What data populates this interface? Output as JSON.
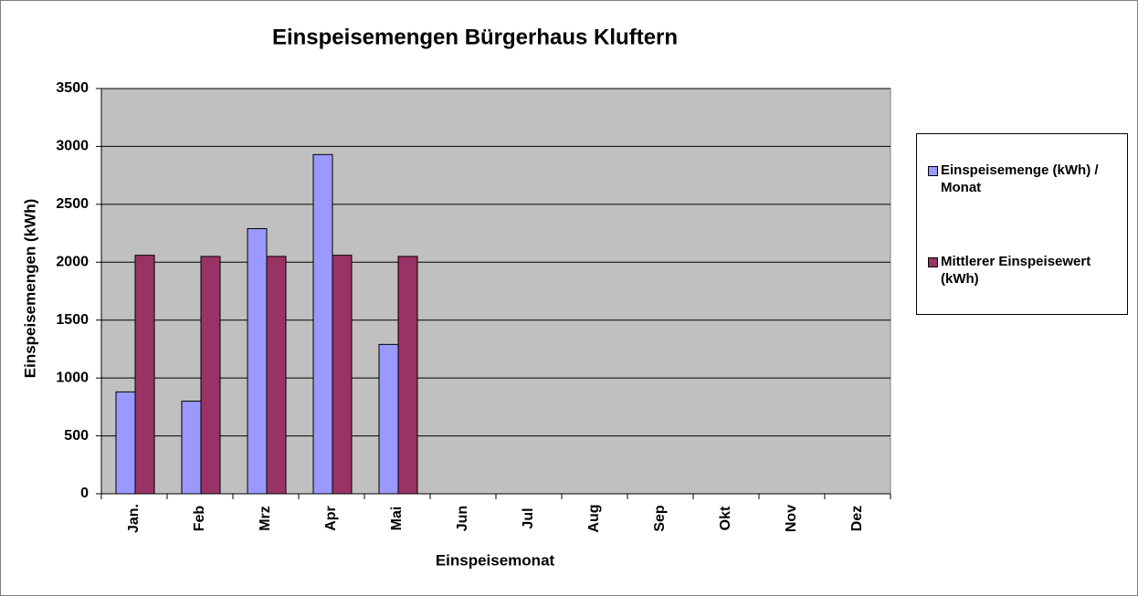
{
  "chart_data": {
    "type": "bar",
    "title": "Einspeisemengen Bürgerhaus Kluftern",
    "x_label": "Einspeisemonat",
    "y_label": "Einspeisemengen (kWh)",
    "categories": [
      "Jan.",
      "Feb",
      "Mrz",
      "Apr",
      "Mai",
      "Jun",
      "Jul",
      "Aug",
      "Sep",
      "Okt",
      "Nov",
      "Dez"
    ],
    "series": [
      {
        "name": "Einspeisemenge (kWh) / Monat",
        "color": "#9999ff",
        "values": [
          880,
          800,
          2290,
          2930,
          1290,
          null,
          null,
          null,
          null,
          null,
          null,
          null
        ]
      },
      {
        "name": "Mittlerer Einspeisewert (kWh)",
        "color": "#993366",
        "values": [
          2060,
          2050,
          2050,
          2060,
          2050,
          null,
          null,
          null,
          null,
          null,
          null,
          null
        ]
      }
    ],
    "ylim": [
      0,
      3500
    ],
    "yticks": [
      0,
      500,
      1000,
      1500,
      2000,
      2500,
      3000,
      3500
    ],
    "grid": true,
    "legend": "right",
    "plot_background": "#c0c0c0"
  }
}
